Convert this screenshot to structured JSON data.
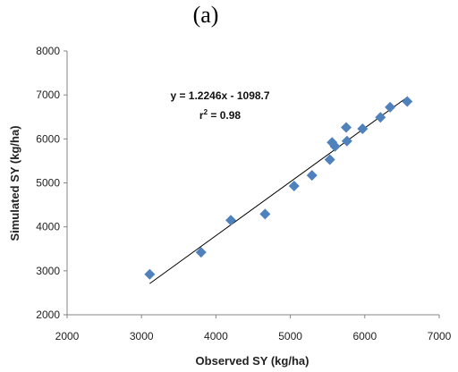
{
  "panel_label": "(a)",
  "chart_data": {
    "type": "scatter",
    "xlabel": "Observed SY (kg/ha)",
    "ylabel": "Simulated SY (kg/ha)",
    "xlim": [
      2000,
      7000
    ],
    "ylim": [
      2000,
      8000
    ],
    "xticks": [
      "2000",
      "3000",
      "4000",
      "5000",
      "6000",
      "7000"
    ],
    "yticks": [
      "2000",
      "3000",
      "4000",
      "5000",
      "6000",
      "7000",
      "8000"
    ],
    "grid": false,
    "marker": "diamond",
    "marker_color": "#4F81BD",
    "points": [
      {
        "x": 3110,
        "y": 2920
      },
      {
        "x": 3800,
        "y": 3420
      },
      {
        "x": 4200,
        "y": 4150
      },
      {
        "x": 4660,
        "y": 4290
      },
      {
        "x": 5050,
        "y": 4930
      },
      {
        "x": 5290,
        "y": 5170
      },
      {
        "x": 5530,
        "y": 5530
      },
      {
        "x": 5560,
        "y": 5920
      },
      {
        "x": 5600,
        "y": 5830
      },
      {
        "x": 5750,
        "y": 6260
      },
      {
        "x": 5760,
        "y": 5950
      },
      {
        "x": 5970,
        "y": 6230
      },
      {
        "x": 6210,
        "y": 6490
      },
      {
        "x": 6340,
        "y": 6720
      },
      {
        "x": 6570,
        "y": 6850
      }
    ],
    "trendline": {
      "slope": 1.2246,
      "intercept": -1098.7,
      "x_range": [
        3110,
        6570
      ],
      "color": "#000000"
    },
    "annotations": {
      "equation": "y = 1.2246x - 1098.7",
      "r2_prefix": "r",
      "r2_superscript": "2",
      "r2_suffix": " = 0.98"
    }
  }
}
